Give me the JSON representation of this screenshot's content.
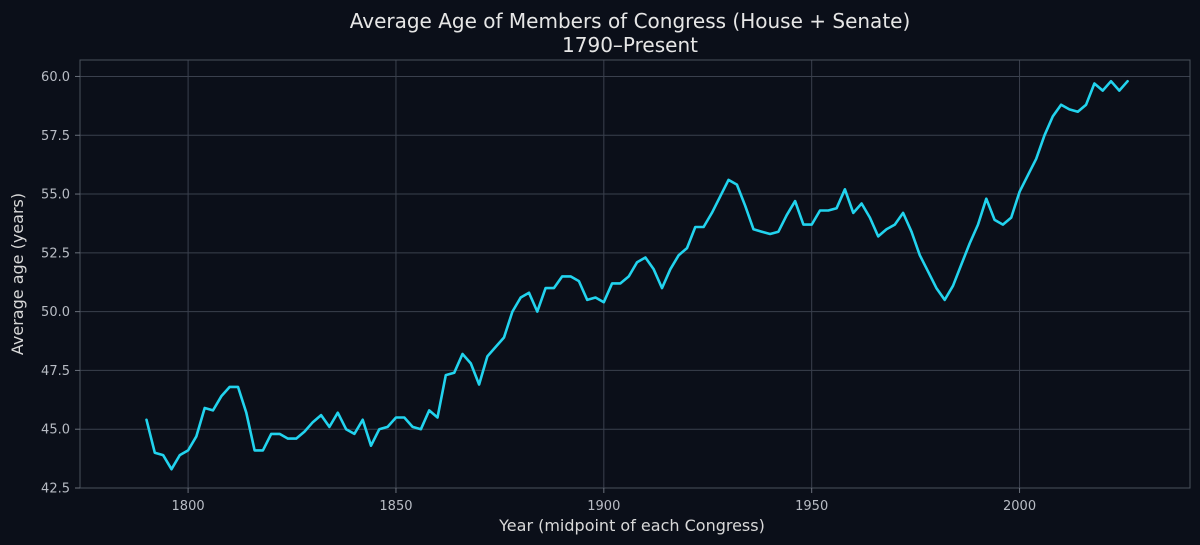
{
  "chart_data": {
    "type": "line",
    "title": "Average Age of Members of Congress (House + Senate)",
    "subtitle": "1790–Present",
    "xlabel": "Year (midpoint of each Congress)",
    "ylabel": "Average age (years)",
    "xlim": [
      1774,
      2041
    ],
    "ylim": [
      42.5,
      60.7
    ],
    "x_ticks": [
      1800,
      1850,
      1900,
      1950,
      2000
    ],
    "y_ticks": [
      42.5,
      45.0,
      47.5,
      50.0,
      52.5,
      55.0,
      57.5,
      60.0
    ],
    "grid": true,
    "line_color": "#22d3ee",
    "series": [
      {
        "x": [
          1790,
          1792,
          1794,
          1796,
          1798,
          1800,
          1802,
          1804,
          1806,
          1808,
          1810,
          1812,
          1814,
          1816,
          1818,
          1820,
          1822,
          1824,
          1826,
          1828,
          1830,
          1832,
          1834,
          1836,
          1838,
          1840,
          1842,
          1844,
          1846,
          1848,
          1850,
          1852,
          1854,
          1856,
          1858,
          1860,
          1862,
          1864,
          1866,
          1868,
          1870,
          1872,
          1874,
          1876,
          1878,
          1880,
          1882,
          1884,
          1886,
          1888,
          1890,
          1892,
          1894,
          1896,
          1898,
          1900,
          1902,
          1904,
          1906,
          1908,
          1910,
          1912,
          1914,
          1916,
          1918,
          1920,
          1922,
          1924,
          1926,
          1928,
          1930,
          1932,
          1934,
          1936,
          1938,
          1940,
          1942,
          1944,
          1946,
          1948,
          1950,
          1952,
          1954,
          1956,
          1958,
          1960,
          1962,
          1964,
          1966,
          1968,
          1970,
          1972,
          1974,
          1976,
          1978,
          1980,
          1982,
          1984,
          1986,
          1988,
          1990,
          1992,
          1994,
          1996,
          1998,
          2000,
          2002,
          2004,
          2006,
          2008,
          2010,
          2012,
          2014,
          2016,
          2018,
          2020,
          2022,
          2024,
          2026
        ],
        "values": [
          45.4,
          44.0,
          43.9,
          43.3,
          43.9,
          44.1,
          44.7,
          45.9,
          45.8,
          46.4,
          46.8,
          46.8,
          45.7,
          44.1,
          44.1,
          44.8,
          44.8,
          44.6,
          44.6,
          44.9,
          45.3,
          45.6,
          45.1,
          45.7,
          45.0,
          44.8,
          45.4,
          44.3,
          45.0,
          45.1,
          45.5,
          45.5,
          45.1,
          45.0,
          45.8,
          45.5,
          47.3,
          47.4,
          48.2,
          47.8,
          46.9,
          48.1,
          48.5,
          48.9,
          50.0,
          50.6,
          50.8,
          50.0,
          51.0,
          51.0,
          51.5,
          51.5,
          51.3,
          50.5,
          50.6,
          50.4,
          51.2,
          51.2,
          51.5,
          52.1,
          52.3,
          51.8,
          51.0,
          51.8,
          52.4,
          52.7,
          53.6,
          53.6,
          54.2,
          54.9,
          55.6,
          55.4,
          54.5,
          53.5,
          53.4,
          53.3,
          53.4,
          54.1,
          54.7,
          53.7,
          53.7,
          54.3,
          54.3,
          54.4,
          55.2,
          54.2,
          54.6,
          54.0,
          53.2,
          53.5,
          53.7,
          54.2,
          53.4,
          52.4,
          51.7,
          51.0,
          50.5,
          51.1,
          52.0,
          52.9,
          53.7,
          54.8,
          53.9,
          53.7,
          54.0,
          55.1,
          55.8,
          56.5,
          57.5,
          58.3,
          58.8,
          58.6,
          58.5,
          58.8,
          59.7,
          59.4,
          59.8,
          59.4,
          59.8
        ]
      }
    ]
  }
}
